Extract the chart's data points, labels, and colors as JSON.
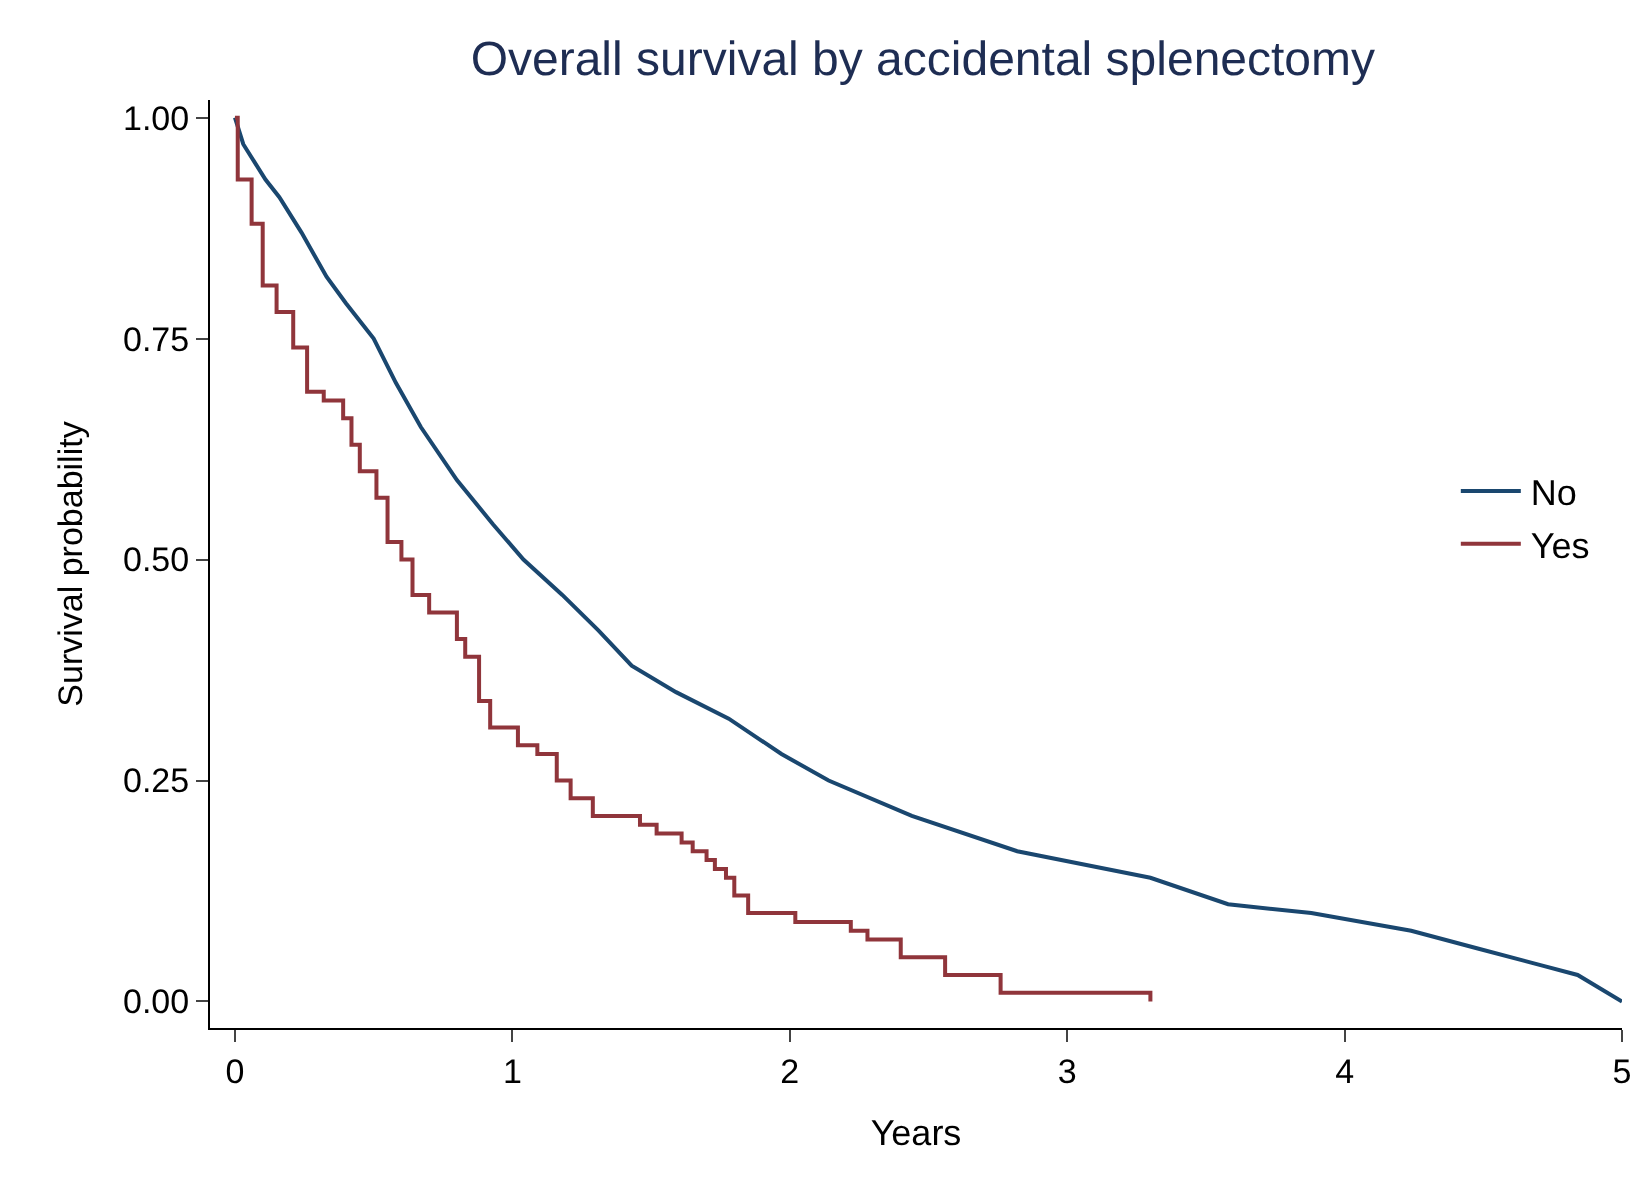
{
  "chart_data": {
    "type": "step",
    "title": "Overall survival by accidental splenectomy",
    "xlabel": "Years",
    "ylabel": "Survival probability",
    "series": [
      {
        "name": "No",
        "type": "line",
        "color": "#1a476f",
        "x": [
          0,
          0.03,
          0.11,
          0.16,
          0.24,
          0.33,
          0.4,
          0.5,
          0.58,
          0.67,
          0.8,
          0.93,
          1.04,
          1.18,
          1.31,
          1.43,
          1.59,
          1.78,
          1.97,
          2.14,
          2.44,
          2.82,
          3.3,
          3.58,
          3.88,
          4.24,
          4.48,
          4.72,
          4.84,
          5.0
        ],
        "values": [
          1.0,
          0.97,
          0.93,
          0.91,
          0.87,
          0.82,
          0.79,
          0.75,
          0.7,
          0.65,
          0.59,
          0.54,
          0.5,
          0.46,
          0.42,
          0.38,
          0.35,
          0.32,
          0.28,
          0.25,
          0.21,
          0.17,
          0.14,
          0.11,
          0.1,
          0.08,
          0.06,
          0.04,
          0.03,
          0.0
        ]
      },
      {
        "name": "Yes",
        "color": "#90353b",
        "x": [
          0,
          0.01,
          0.06,
          0.1,
          0.15,
          0.21,
          0.26,
          0.32,
          0.39,
          0.42,
          0.45,
          0.51,
          0.55,
          0.6,
          0.64,
          0.7,
          0.8,
          0.83,
          0.88,
          0.92,
          1.02,
          1.09,
          1.16,
          1.21,
          1.29,
          1.46,
          1.52,
          1.61,
          1.65,
          1.7,
          1.73,
          1.77,
          1.8,
          1.85,
          2.02,
          2.22,
          2.28,
          2.4,
          2.56,
          2.76,
          3.3
        ],
        "values": [
          1.0,
          0.93,
          0.88,
          0.81,
          0.78,
          0.74,
          0.69,
          0.68,
          0.66,
          0.63,
          0.6,
          0.57,
          0.52,
          0.5,
          0.46,
          0.44,
          0.41,
          0.39,
          0.34,
          0.31,
          0.29,
          0.28,
          0.25,
          0.23,
          0.21,
          0.2,
          0.19,
          0.18,
          0.17,
          0.16,
          0.15,
          0.14,
          0.12,
          0.1,
          0.09,
          0.08,
          0.07,
          0.05,
          0.03,
          0.01,
          0.0
        ]
      }
    ],
    "xlim": [
      -0.09,
      5.0
    ],
    "xticks": [
      0,
      1,
      2,
      3,
      4,
      5
    ],
    "ylim": [
      -0.03,
      1.02
    ],
    "yticks": [
      {
        "value": 0,
        "label": "0.00"
      },
      {
        "value": 0.25,
        "label": "0.25"
      },
      {
        "value": 0.5,
        "label": "0.50"
      },
      {
        "value": 0.75,
        "label": "0.75"
      },
      {
        "value": 1,
        "label": "1.00"
      }
    ],
    "legend": "right"
  }
}
